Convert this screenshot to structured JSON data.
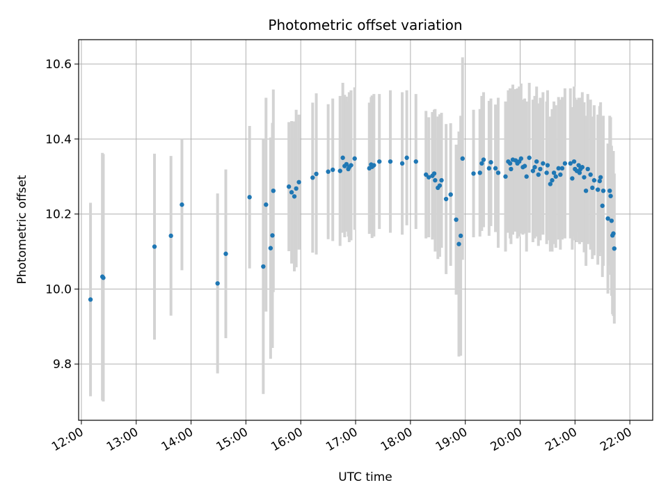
{
  "chart_data": {
    "type": "scatter",
    "title": "Photometric offset variation",
    "xlabel": "UTC time",
    "ylabel": "Photometric offset",
    "x_tick_labels": [
      "12:00",
      "13:00",
      "14:00",
      "15:00",
      "16:00",
      "17:00",
      "18:00",
      "19:00",
      "20:00",
      "21:00",
      "22:00"
    ],
    "y_tick_labels": [
      "9.8",
      "10.0",
      "10.2",
      "10.4",
      "10.6"
    ],
    "xlim": [
      "11:57",
      "22:25"
    ],
    "ylim": [
      9.65,
      10.665
    ],
    "grid": true,
    "colors": {
      "point": "#1f77b4",
      "errorbar": "#d3d3d3",
      "grid": "#b0b0b0"
    },
    "points": [
      [
        "12:10",
        9.972,
        0.258
      ],
      [
        "12:23",
        10.033,
        0.33
      ],
      [
        "12:24",
        10.03,
        0.33
      ],
      [
        "13:20",
        10.113,
        0.248
      ],
      [
        "13:38",
        10.142,
        0.213
      ],
      [
        "13:50",
        10.225,
        0.175
      ],
      [
        "14:29",
        10.015,
        0.24
      ],
      [
        "14:38",
        10.094,
        0.225
      ],
      [
        "15:04",
        10.245,
        0.19
      ],
      [
        "15:19",
        10.06,
        0.34
      ],
      [
        "15:22",
        10.225,
        0.285
      ],
      [
        "15:27",
        10.109,
        0.295
      ],
      [
        "15:29",
        10.143,
        0.3
      ],
      [
        "15:30",
        10.262,
        0.27
      ],
      [
        "15:47",
        10.273,
        0.172
      ],
      [
        "15:50",
        10.258,
        0.19
      ],
      [
        "15:53",
        10.247,
        0.2
      ],
      [
        "15:55",
        10.268,
        0.21
      ],
      [
        "15:58",
        10.285,
        0.18
      ],
      [
        "16:13",
        10.297,
        0.2
      ],
      [
        "16:17",
        10.307,
        0.215
      ],
      [
        "16:30",
        10.313,
        0.18
      ],
      [
        "16:35",
        10.318,
        0.19
      ],
      [
        "16:43",
        10.315,
        0.2
      ],
      [
        "16:46",
        10.35,
        0.2
      ],
      [
        "16:48",
        10.328,
        0.19
      ],
      [
        "16:50",
        10.333,
        0.18
      ],
      [
        "16:52",
        10.32,
        0.18
      ],
      [
        "16:53",
        10.325,
        0.2
      ],
      [
        "16:55",
        10.33,
        0.2
      ],
      [
        "16:59",
        10.348,
        0.19
      ],
      [
        "17:15",
        10.322,
        0.175
      ],
      [
        "17:17",
        10.332,
        0.18
      ],
      [
        "17:18",
        10.326,
        0.19
      ],
      [
        "17:20",
        10.33,
        0.19
      ],
      [
        "17:26",
        10.34,
        0.18
      ],
      [
        "17:38",
        10.34,
        0.19
      ],
      [
        "17:51",
        10.335,
        0.19
      ],
      [
        "17:56",
        10.35,
        0.18
      ],
      [
        "18:06",
        10.34,
        0.18
      ],
      [
        "18:17",
        10.305,
        0.17
      ],
      [
        "18:20",
        10.298,
        0.16
      ],
      [
        "18:24",
        10.302,
        0.17
      ],
      [
        "18:26",
        10.308,
        0.17
      ],
      [
        "18:27",
        10.29,
        0.19
      ],
      [
        "18:30",
        10.27,
        0.19
      ],
      [
        "18:32",
        10.276,
        0.19
      ],
      [
        "18:34",
        10.29,
        0.18
      ],
      [
        "18:39",
        10.24,
        0.2
      ],
      [
        "18:44",
        10.252,
        0.19
      ],
      [
        "18:50",
        10.185,
        0.2
      ],
      [
        "18:53",
        10.12,
        0.3
      ],
      [
        "18:55",
        10.142,
        0.32
      ],
      [
        "18:57",
        10.348,
        0.27
      ],
      [
        "19:09",
        10.308,
        0.17
      ],
      [
        "19:16",
        10.31,
        0.17
      ],
      [
        "19:18",
        10.335,
        0.18
      ],
      [
        "19:20",
        10.345,
        0.18
      ],
      [
        "19:26",
        10.322,
        0.18
      ],
      [
        "19:28",
        10.338,
        0.17
      ],
      [
        "19:33",
        10.322,
        0.17
      ],
      [
        "19:36",
        10.31,
        0.2
      ],
      [
        "19:44",
        10.3,
        0.2
      ],
      [
        "19:47",
        10.34,
        0.19
      ],
      [
        "19:49",
        10.335,
        0.2
      ],
      [
        "19:50",
        10.32,
        0.2
      ],
      [
        "19:52",
        10.345,
        0.2
      ],
      [
        "19:55",
        10.343,
        0.19
      ],
      [
        "19:57",
        10.335,
        0.2
      ],
      [
        "19:59",
        10.34,
        0.2
      ],
      [
        "20:01",
        10.348,
        0.2
      ],
      [
        "20:03",
        10.325,
        0.18
      ],
      [
        "20:05",
        10.328,
        0.18
      ],
      [
        "20:07",
        10.3,
        0.2
      ],
      [
        "20:10",
        10.35,
        0.2
      ],
      [
        "20:14",
        10.315,
        0.19
      ],
      [
        "20:16",
        10.325,
        0.19
      ],
      [
        "20:18",
        10.34,
        0.2
      ],
      [
        "20:20",
        10.305,
        0.19
      ],
      [
        "20:22",
        10.32,
        0.19
      ],
      [
        "20:25",
        10.335,
        0.19
      ],
      [
        "20:29",
        10.31,
        0.19
      ],
      [
        "20:30",
        10.33,
        0.2
      ],
      [
        "20:33",
        10.28,
        0.18
      ],
      [
        "20:35",
        10.29,
        0.19
      ],
      [
        "20:37",
        10.31,
        0.19
      ],
      [
        "20:39",
        10.3,
        0.19
      ],
      [
        "20:42",
        10.322,
        0.19
      ],
      [
        "20:44",
        10.305,
        0.2
      ],
      [
        "20:46",
        10.322,
        0.19
      ],
      [
        "20:49",
        10.335,
        0.2
      ],
      [
        "20:55",
        10.335,
        0.2
      ],
      [
        "20:57",
        10.295,
        0.19
      ],
      [
        "20:59",
        10.34,
        0.2
      ],
      [
        "21:00",
        10.32,
        0.19
      ],
      [
        "21:02",
        10.315,
        0.19
      ],
      [
        "21:04",
        10.33,
        0.18
      ],
      [
        "21:05",
        10.31,
        0.19
      ],
      [
        "21:06",
        10.32,
        0.19
      ],
      [
        "21:08",
        10.325,
        0.2
      ],
      [
        "21:10",
        10.298,
        0.2
      ],
      [
        "21:12",
        10.262,
        0.2
      ],
      [
        "21:14",
        10.32,
        0.2
      ],
      [
        "21:17",
        10.305,
        0.2
      ],
      [
        "21:19",
        10.27,
        0.19
      ],
      [
        "21:21",
        10.29,
        0.2
      ],
      [
        "21:25",
        10.265,
        0.2
      ],
      [
        "21:27",
        10.288,
        0.2
      ],
      [
        "21:28",
        10.298,
        0.2
      ],
      [
        "21:30",
        10.222,
        0.19
      ],
      [
        "21:31",
        10.262,
        0.2
      ],
      [
        "21:36",
        10.188,
        0.2
      ],
      [
        "21:38",
        10.262,
        0.2
      ],
      [
        "21:39",
        10.248,
        0.21
      ],
      [
        "21:40",
        10.182,
        0.2
      ],
      [
        "21:41",
        10.143,
        0.21
      ],
      [
        "21:42",
        10.148,
        0.22
      ],
      [
        "21:43",
        10.108,
        0.2
      ]
    ]
  }
}
